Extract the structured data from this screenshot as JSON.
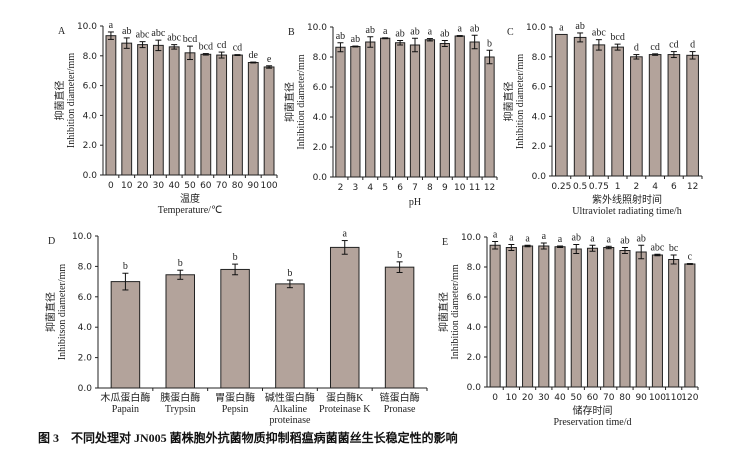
{
  "caption": "图 3　不同处理对 JN005 菌株胞外抗菌物质抑制稻瘟病菌菌丝生长稳定性的影响",
  "colors": {
    "bar": "#b3a39b",
    "stroke": "#222222"
  },
  "chart_data": [
    {
      "panel": "A",
      "type": "bar",
      "ylabel_cn": "抑菌直径",
      "ylabel": "Inhibition diameter/mm",
      "xlabel_cn": "温度",
      "xlabel": "Temperature/℃",
      "ylim": [
        0,
        10
      ],
      "yticks": [
        "0.0",
        "2.0",
        "4.0",
        "6.0",
        "8.0",
        "10.0"
      ],
      "categories": [
        "0",
        "10",
        "20",
        "30",
        "40",
        "50",
        "60",
        "70",
        "80",
        "90",
        "100"
      ],
      "values": [
        9.35,
        8.85,
        8.75,
        8.7,
        8.6,
        8.2,
        8.1,
        8.05,
        8.05,
        7.55,
        7.25
      ],
      "errors": [
        0.25,
        0.35,
        0.2,
        0.35,
        0.15,
        0.45,
        0.05,
        0.2,
        0.03,
        0.03,
        0.08
      ],
      "letters": [
        "a",
        "ab",
        "abc",
        "abc",
        "abc",
        "bcd",
        "bcd",
        "cd",
        "cd",
        "de",
        "e"
      ]
    },
    {
      "panel": "B",
      "type": "bar",
      "ylabel_cn": "抑菌直径",
      "ylabel": "Inhibition diameter/mm",
      "xlabel_cn": "",
      "xlabel": "pH",
      "ylim": [
        0,
        10
      ],
      "yticks": [
        "0.0",
        "2.0",
        "4.0",
        "6.0",
        "8.0",
        "10.0"
      ],
      "categories": [
        "2",
        "3",
        "4",
        "5",
        "6",
        "7",
        "8",
        "9",
        "10",
        "11",
        "12"
      ],
      "values": [
        8.65,
        8.7,
        9.0,
        9.25,
        8.95,
        8.8,
        9.15,
        8.9,
        9.4,
        9.0,
        8.0
      ],
      "errors": [
        0.3,
        0.03,
        0.35,
        0.03,
        0.15,
        0.45,
        0.08,
        0.2,
        0.03,
        0.45,
        0.45
      ],
      "letters": [
        "ab",
        "ab",
        "ab",
        "a",
        "ab",
        "ab",
        "a",
        "ab",
        "a",
        "ab",
        "b"
      ]
    },
    {
      "panel": "C",
      "type": "bar",
      "ylabel_cn": "抑菌直径",
      "ylabel": "Inhibition diameter/mm",
      "xlabel_cn": "紫外线照射时间",
      "xlabel": "Ultraviolet radiating time/h",
      "ylim": [
        0,
        10
      ],
      "yticks": [
        "0.0",
        "2.0",
        "4.0",
        "6.0",
        "8.0",
        "10.0"
      ],
      "categories": [
        "0.25",
        "0.5",
        "0.75",
        "1",
        "2",
        "4",
        "6",
        "12"
      ],
      "values": [
        9.5,
        9.3,
        8.8,
        8.65,
        8.0,
        8.15,
        8.15,
        8.1
      ],
      "errors": [
        0,
        0.3,
        0.35,
        0.2,
        0.15,
        0.05,
        0.2,
        0.25
      ],
      "letters": [
        "a",
        "ab",
        "abc",
        "bcd",
        "d",
        "cd",
        "cd",
        "d"
      ]
    },
    {
      "panel": "D",
      "type": "bar",
      "ylabel_cn": "抑菌直径",
      "ylabel": "Inhibitson diameter/mm",
      "xlabel_cn": "",
      "xlabel": "",
      "ylim": [
        0,
        10
      ],
      "yticks": [
        "0.0",
        "2.0",
        "4.0",
        "6.0",
        "8.0",
        "10.0"
      ],
      "categories": [
        "木瓜蛋白酶\nPapain",
        "胰蛋白酶\nTrypsin",
        "胃蛋白酶\nPepsin",
        "碱性蛋白酶\nAlkaline\nproteinase",
        "蛋白酶K\nProteinase K",
        "链蛋白酶\nPronase"
      ],
      "values": [
        7.0,
        7.45,
        7.8,
        6.85,
        9.25,
        7.95
      ],
      "errors": [
        0.55,
        0.3,
        0.35,
        0.25,
        0.45,
        0.35
      ],
      "letters": [
        "b",
        "b",
        "b",
        "b",
        "a",
        "b"
      ]
    },
    {
      "panel": "E",
      "type": "bar",
      "ylabel_cn": "抑菌直径",
      "ylabel": "Inhibition diameter/mm",
      "xlabel_cn": "储存时间",
      "xlabel": "Preservation time/d",
      "ylim": [
        0,
        10
      ],
      "yticks": [
        "0.0",
        "2.0",
        "4.0",
        "6.0",
        "8.0",
        "10.0"
      ],
      "categories": [
        "0",
        "10",
        "20",
        "30",
        "40",
        "50",
        "60",
        "70",
        "80",
        "90",
        "100",
        "110",
        "120"
      ],
      "values": [
        9.45,
        9.3,
        9.4,
        9.4,
        9.35,
        9.2,
        9.25,
        9.3,
        9.1,
        9.0,
        8.8,
        8.5,
        8.2
      ],
      "errors": [
        0.25,
        0.2,
        0.05,
        0.2,
        0.05,
        0.3,
        0.2,
        0.08,
        0.2,
        0.45,
        0.05,
        0.3,
        0.03
      ],
      "letters": [
        "a",
        "a",
        "a",
        "a",
        "a",
        "ab",
        "a",
        "a",
        "ab",
        "ab",
        "abc",
        "bc",
        "c"
      ]
    }
  ]
}
